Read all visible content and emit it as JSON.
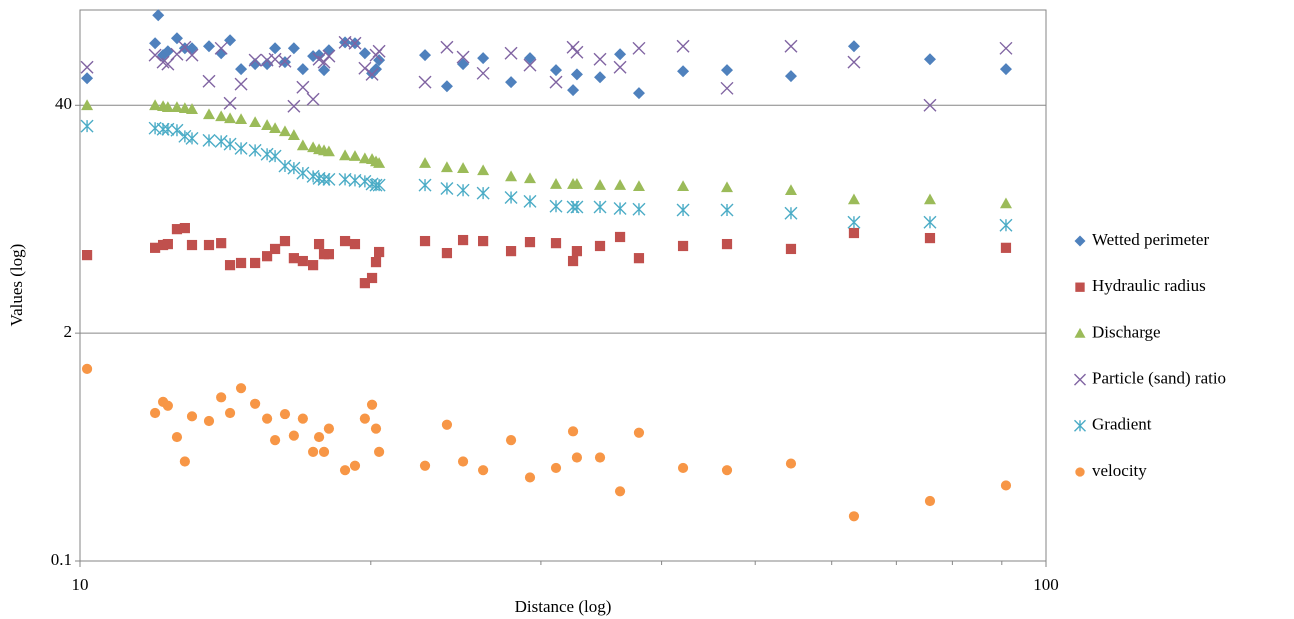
{
  "chart_data": {
    "type": "scatter",
    "x_label": "Distance (log)",
    "y_label": "Values (log)",
    "xlog": true,
    "ylog": true,
    "xlim": [
      10,
      100
    ],
    "xticks": [
      10,
      100
    ],
    "xminorticks": [
      20,
      30,
      40,
      50,
      60,
      70,
      80,
      90
    ],
    "ylim": [
      0.1,
      140
    ],
    "yticks": [
      0.1,
      2,
      40
    ],
    "grid": true,
    "legend": "right",
    "x": [
      10.17,
      11.96,
      12.05,
      12.19,
      12.33,
      12.6,
      12.84,
      13.06,
      13.6,
      14.0,
      14.3,
      14.68,
      15.18,
      15.62,
      15.92,
      16.3,
      16.65,
      17.01,
      17.43,
      17.68,
      17.89,
      18.1,
      18.81,
      19.26,
      19.72,
      20.06,
      20.25,
      20.4,
      22.76,
      23.98,
      24.92,
      26.14,
      27.94,
      29.23,
      31.1,
      32.39,
      32.69,
      34.54,
      36.23,
      37.9,
      42.1,
      46.75,
      54.45,
      63.27,
      75.84,
      90.9
    ],
    "series": [
      {
        "name": "Wetted perimeter",
        "color": "#4f81bd",
        "marker": "diamond",
        "values": [
          57.1,
          90.4,
          130.7,
          77.3,
          81.4,
          96.5,
          84.6,
          84.6,
          86.9,
          79.3,
          94,
          64.3,
          68.7,
          68.7,
          84.6,
          70.5,
          84.6,
          64.3,
          76.3,
          77.3,
          63.5,
          82.5,
          91.4,
          90.4,
          79.3,
          60.9,
          64.3,
          72.4,
          77.3,
          51.4,
          68.7,
          74.4,
          54.2,
          74.4,
          63.5,
          48.8,
          60.1,
          57.8,
          78.3,
          46.9,
          62.6,
          63.5,
          58.7,
          86.9,
          73.3,
          64.3
        ]
      },
      {
        "name": "Hydraulic radius",
        "color": "#c0504d",
        "marker": "square",
        "values": [
          5.58,
          6.14,
          null,
          6.37,
          6.45,
          7.85,
          7.96,
          6.37,
          6.37,
          6.53,
          4.89,
          5.03,
          5.03,
          5.5,
          6.05,
          6.71,
          5.36,
          5.16,
          4.89,
          6.45,
          5.65,
          5.65,
          6.71,
          6.45,
          3.86,
          4.13,
          5.09,
          5.81,
          6.71,
          5.73,
          6.8,
          6.71,
          5.88,
          6.62,
          6.53,
          5.16,
          5.88,
          6.29,
          7.08,
          5.36,
          6.29,
          6.45,
          6.05,
          7.46,
          6.98,
          6.14
        ]
      },
      {
        "name": "Discharge",
        "color": "#9bbb59",
        "marker": "triangle",
        "values": [
          40,
          40,
          null,
          39.5,
          39.0,
          39.0,
          38.5,
          38.0,
          35.5,
          34.6,
          33.7,
          33.3,
          32.0,
          30.8,
          29.6,
          28.4,
          27.0,
          23.6,
          23.0,
          22.4,
          22.1,
          21.8,
          20.7,
          20.5,
          19.9,
          19.7,
          19.1,
          18.7,
          18.7,
          17.7,
          17.5,
          17.0,
          15.7,
          15.3,
          14.2,
          14.2,
          14.2,
          14.0,
          14.0,
          13.8,
          13.8,
          13.6,
          13.1,
          11.6,
          11.6,
          11.0
        ]
      },
      {
        "name": "Particle (sand) ratio",
        "color": "#8064a2",
        "marker": "x",
        "values": [
          66,
          77.3,
          null,
          70.5,
          68.7,
          78.3,
          85.8,
          77.3,
          54.9,
          84.6,
          41.1,
          52.8,
          72.4,
          72.4,
          73.3,
          71.4,
          39.5,
          50.7,
          43.3,
          73.3,
          70.5,
          76.3,
          91.4,
          90.4,
          65.1,
          60.1,
          77.3,
          81.4,
          54.2,
          85.8,
          75.3,
          60.9,
          79.3,
          67.8,
          54.2,
          85.8,
          80.3,
          73.3,
          66,
          84.6,
          86.9,
          50.0,
          86.9,
          70.5,
          40,
          84.6
        ]
      },
      {
        "name": "Gradient",
        "color": "#4bacc6",
        "marker": "asterisk",
        "values": [
          30.4,
          29.6,
          null,
          29.2,
          29.2,
          28.8,
          26.6,
          25.9,
          25.2,
          24.9,
          24.0,
          22.7,
          22.1,
          21.0,
          20.5,
          18.0,
          17.5,
          16.4,
          15.7,
          15.3,
          15.1,
          15.1,
          15.1,
          14.9,
          14.7,
          14.2,
          14.0,
          14.0,
          14.0,
          13.4,
          13.1,
          12.6,
          11.9,
          11.3,
          10.6,
          10.5,
          10.5,
          10.5,
          10.3,
          10.2,
          10.1,
          10.1,
          9.67,
          8.6,
          8.6,
          8.26
        ]
      },
      {
        "name": "velocity",
        "color": "#f79646",
        "marker": "circle",
        "values": [
          1.25,
          0.7,
          null,
          0.81,
          0.77,
          0.51,
          0.37,
          0.67,
          0.63,
          0.86,
          0.7,
          0.97,
          0.79,
          0.65,
          0.49,
          0.69,
          0.52,
          0.65,
          0.42,
          0.51,
          0.42,
          0.57,
          0.33,
          0.35,
          0.65,
          0.78,
          0.57,
          0.42,
          0.35,
          0.6,
          0.37,
          0.33,
          0.49,
          0.3,
          0.34,
          0.55,
          0.39,
          0.39,
          0.25,
          0.54,
          0.34,
          0.33,
          0.36,
          0.18,
          0.22,
          0.27
        ]
      }
    ]
  }
}
